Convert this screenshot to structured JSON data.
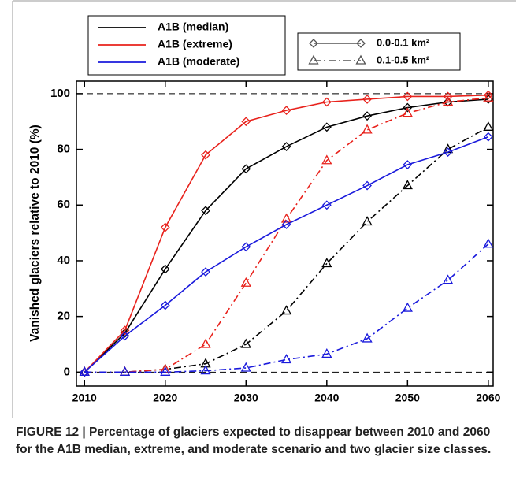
{
  "chart_data": {
    "type": "line",
    "y_label": "Vanished glaciers relative to 2010 (%)",
    "caption": "FIGURE 12 | Percentage of glaciers expected to disappear between 2010 and 2060 for the A1B median, extreme, and moderate scenario and two glacier size classes.",
    "x": [
      2010,
      2015,
      2020,
      2025,
      2030,
      2035,
      2040,
      2045,
      2050,
      2055,
      2060
    ],
    "xlim": [
      2009,
      2060.6
    ],
    "xticks": [
      2010,
      2020,
      2030,
      2040,
      2050,
      2060
    ],
    "ylim": [
      -5,
      104.5
    ],
    "yticks": [
      0,
      20,
      40,
      60,
      80,
      100
    ],
    "hlines": [
      0,
      100
    ],
    "size_classes": [
      {
        "name": "0.0-0.1 km²",
        "marker": "diamond",
        "dash": "solid"
      },
      {
        "name": "0.1-0.5 km²",
        "marker": "triangle",
        "dash": "dashdot"
      }
    ],
    "scenarios": [
      {
        "name": "A1B (median)",
        "color": "#000000",
        "series": [
          {
            "values": [
              0,
              14,
              37,
              58,
              73,
              81,
              88,
              92,
              95,
              97,
              98
            ]
          },
          {
            "values": [
              0,
              0,
              1,
              3,
              10,
              22,
              39,
              54,
              67,
              80,
              88
            ]
          }
        ]
      },
      {
        "name": "A1B (extreme)",
        "color": "#e8221c",
        "series": [
          {
            "values": [
              0,
              15,
              52,
              78,
              90,
              94,
              97,
              98,
              99,
              99,
              99.5
            ]
          },
          {
            "values": [
              0,
              0,
              1,
              10,
              32,
              55,
              76,
              87,
              93,
              97,
              98.5
            ]
          }
        ]
      },
      {
        "name": "A1B (moderate)",
        "color": "#1a1adc",
        "series": [
          {
            "values": [
              0,
              13,
              24,
              36,
              45,
              53,
              60,
              67,
              74.5,
              79,
              84.5
            ]
          },
          {
            "values": [
              0,
              0,
              0,
              0.5,
              1.5,
              4.5,
              6.5,
              12,
              23,
              33,
              46
            ]
          }
        ]
      }
    ]
  }
}
